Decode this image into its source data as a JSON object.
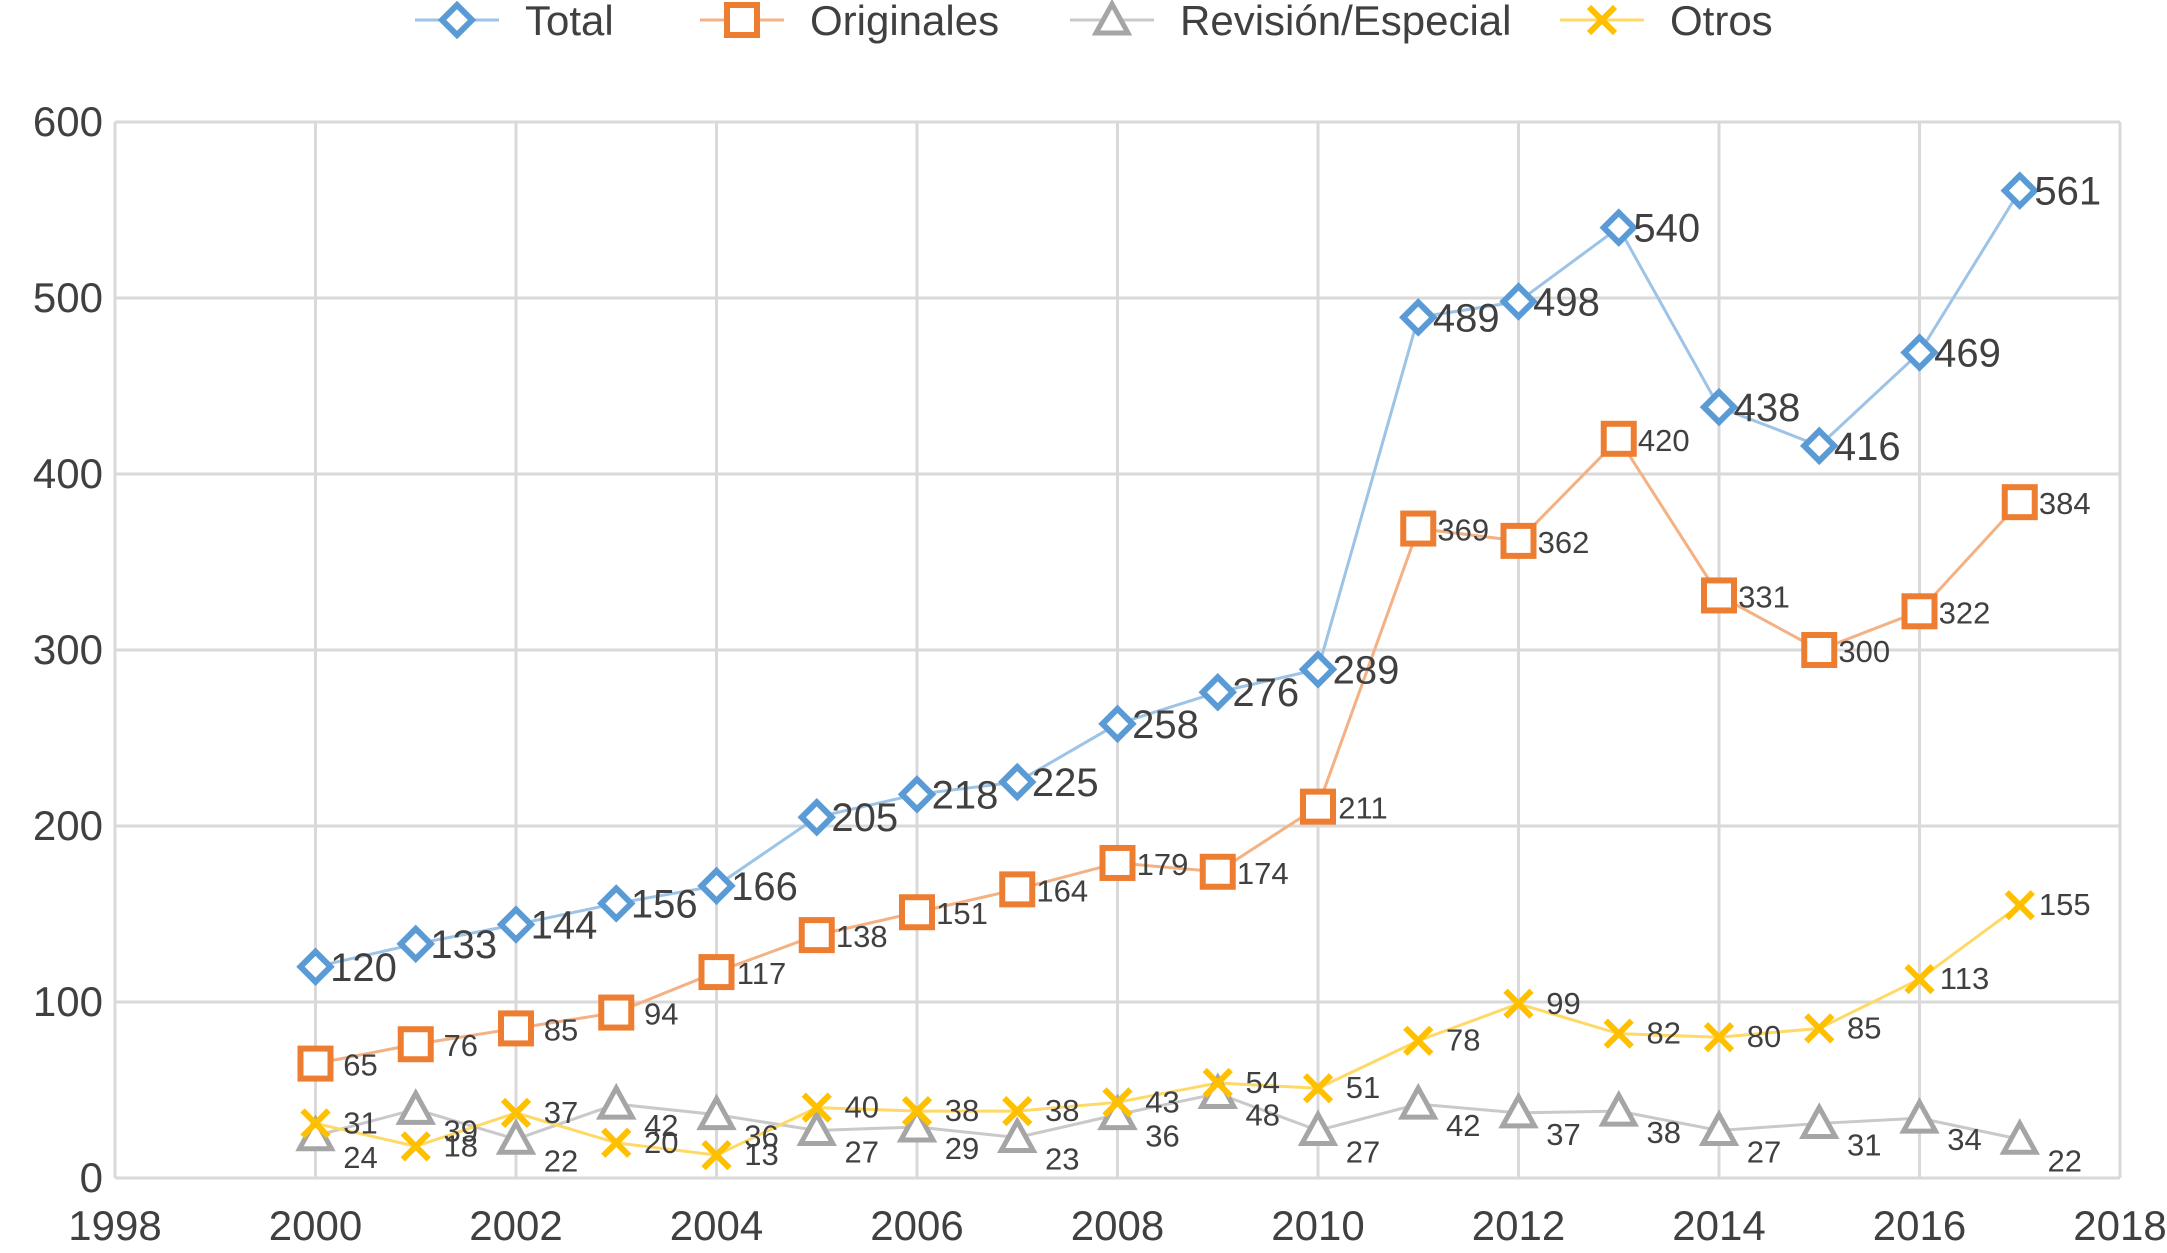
{
  "chart_data": {
    "type": "line",
    "title": "",
    "xlabel": "",
    "ylabel": "",
    "xlim": [
      1998,
      2018
    ],
    "ylim": [
      0,
      600
    ],
    "xticks": [
      "1998",
      "2000",
      "2002",
      "2004",
      "2006",
      "2008",
      "2010",
      "2012",
      "2014",
      "2016",
      "2018"
    ],
    "yticks": [
      "0",
      "100",
      "200",
      "300",
      "400",
      "500",
      "600"
    ],
    "grid": true,
    "legend_position": "top",
    "x": [
      2000,
      2001,
      2002,
      2003,
      2004,
      2005,
      2006,
      2007,
      2008,
      2009,
      2010,
      2011,
      2012,
      2013,
      2014,
      2015,
      2016,
      2017
    ],
    "series": [
      {
        "name": "Total",
        "marker": "diamond",
        "color": "#5b9bd5",
        "line_color": "#9dc3e6",
        "values": [
          120,
          133,
          144,
          156,
          166,
          205,
          218,
          225,
          258,
          276,
          289,
          489,
          498,
          540,
          438,
          416,
          469,
          561
        ]
      },
      {
        "name": "Originales",
        "marker": "square",
        "color": "#ed7d31",
        "line_color": "#f4b183",
        "values": [
          65,
          76,
          85,
          94,
          117,
          138,
          151,
          164,
          179,
          174,
          211,
          369,
          362,
          420,
          331,
          300,
          322,
          384
        ]
      },
      {
        "name": "Revisión/Especial",
        "marker": "triangle",
        "color": "#a5a5a5",
        "line_color": "#c9c9c9",
        "values": [
          24,
          39,
          22,
          42,
          36,
          27,
          29,
          23,
          36,
          48,
          27,
          42,
          37,
          38,
          27,
          31,
          34,
          22
        ]
      },
      {
        "name": "Otros",
        "marker": "x",
        "color": "#ffc000",
        "line_color": "#ffd966",
        "values": [
          31,
          18,
          37,
          20,
          13,
          40,
          38,
          38,
          43,
          54,
          51,
          78,
          99,
          82,
          80,
          85,
          113,
          155
        ]
      }
    ]
  }
}
